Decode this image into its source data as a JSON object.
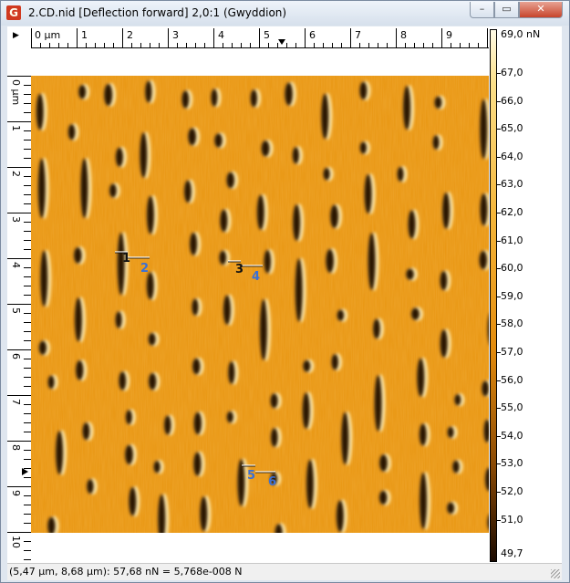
{
  "window": {
    "title": "2.CD.nid [Deflection forward] 2,0:1 (Gwyddion)",
    "controls": {
      "minimize": "–",
      "maximize": "▭",
      "close": "✕"
    }
  },
  "ruler": {
    "x_unit_label": "0 µm",
    "x_ticks": [
      "1",
      "2",
      "3",
      "4",
      "5",
      "6",
      "7",
      "8",
      "9"
    ],
    "y_unit_label": "0 µm",
    "y_ticks": [
      "1",
      "2",
      "3",
      "4",
      "5",
      "6",
      "7",
      "8",
      "9",
      "10"
    ]
  },
  "colorbar": {
    "max_label": "69,0 nN",
    "labels": [
      "67,0",
      "66,0",
      "65,0",
      "64,0",
      "63,0",
      "62,0",
      "61,0",
      "60,0",
      "59,0",
      "58,0",
      "57,0",
      "56,0",
      "55,0",
      "54,0",
      "53,0",
      "52,0",
      "51,0"
    ],
    "min_label": "49,7",
    "colors": [
      "#fffbe6",
      "#f5b63a",
      "#e48c0d",
      "#8a4a05",
      "#1a0a00"
    ]
  },
  "markers": {
    "labels": [
      "1",
      "2",
      "3",
      "4",
      "5",
      "6"
    ]
  },
  "status": {
    "text": "(5,47 µm, 8,68 µm): 57,68 nN = 5,768e-008 N"
  }
}
